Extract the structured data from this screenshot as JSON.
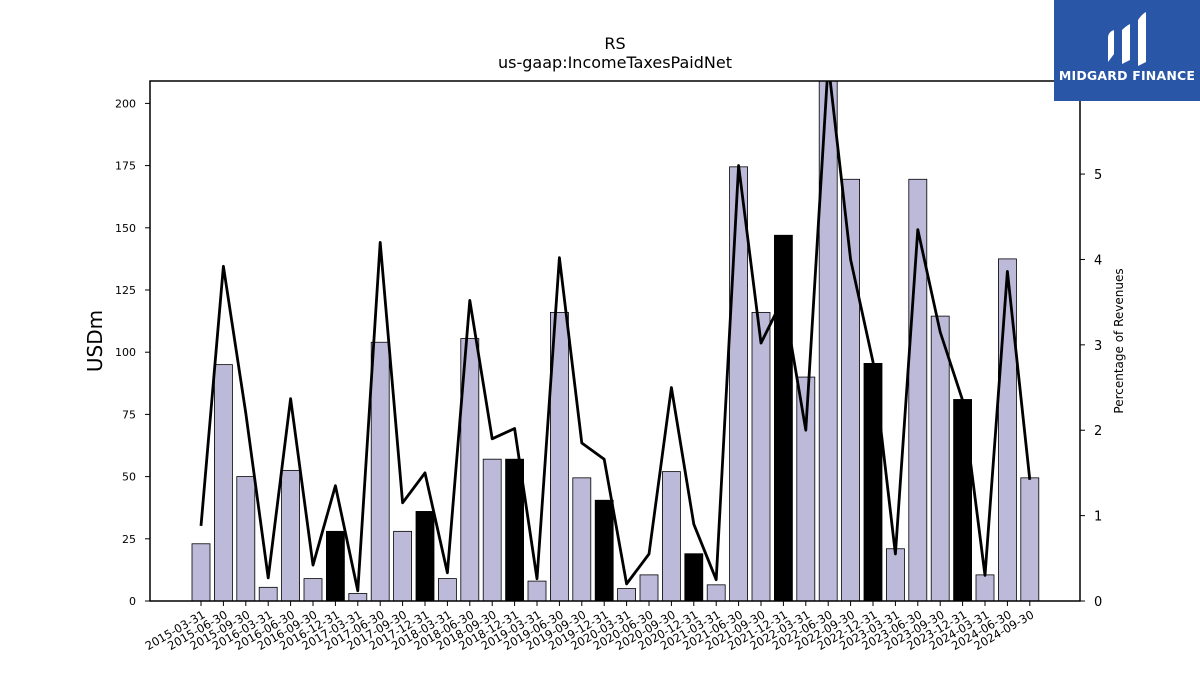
{
  "chart_data": {
    "type": "bar",
    "title": "RS",
    "subtitle": "us-gaap:IncomeTaxesPaidNet",
    "ylabel": "USDm",
    "y2label": "Percentage of Revenues",
    "ylim": [
      0,
      209
    ],
    "y2lim": [
      0,
      6.09
    ],
    "yticks": [
      0,
      25,
      50,
      75,
      100,
      125,
      150,
      175,
      200
    ],
    "y2ticks": [
      0,
      1,
      2,
      3,
      4,
      5
    ],
    "colors": {
      "bar_q": "#bdbad9",
      "bar_q4": "#000000",
      "line": "#000000"
    },
    "categories": [
      "2015-03-31",
      "2015-06-30",
      "2015-09-30",
      "2016-03-31",
      "2016-06-30",
      "2016-09-30",
      "2016-12-31",
      "2017-03-31",
      "2017-06-30",
      "2017-09-30",
      "2017-12-31",
      "2018-03-31",
      "2018-06-30",
      "2018-09-30",
      "2018-12-31",
      "2019-03-31",
      "2019-06-30",
      "2019-09-30",
      "2019-12-31",
      "2020-03-31",
      "2020-06-30",
      "2020-09-30",
      "2020-12-31",
      "2021-03-31",
      "2021-06-30",
      "2021-09-30",
      "2021-12-31",
      "2022-03-31",
      "2022-06-30",
      "2022-09-30",
      "2022-12-31",
      "2023-03-31",
      "2023-06-30",
      "2023-09-30",
      "2023-12-31",
      "2024-03-31",
      "2024-06-30",
      "2024-09-30"
    ],
    "series": [
      {
        "type": "bar",
        "values": [
          23,
          95,
          50,
          5.5,
          52.5,
          9,
          28,
          3,
          104,
          28,
          36,
          9,
          105.5,
          57,
          57,
          8,
          116,
          49.5,
          40.5,
          5,
          10.5,
          52,
          19,
          6.5,
          174.5,
          116,
          147,
          90,
          209,
          169.5,
          95.5,
          21,
          169.5,
          114.5,
          81,
          10.5,
          137.5,
          49.5
        ],
        "highlight": [
          false,
          false,
          false,
          false,
          false,
          false,
          true,
          false,
          false,
          false,
          true,
          false,
          false,
          false,
          true,
          false,
          false,
          false,
          true,
          false,
          false,
          false,
          true,
          false,
          false,
          false,
          true,
          false,
          false,
          false,
          true,
          false,
          false,
          false,
          true,
          false,
          false,
          false
        ]
      },
      {
        "type": "line",
        "axis": "right",
        "values": [
          0.88,
          3.92,
          2.2,
          0.27,
          2.37,
          0.42,
          1.35,
          0.12,
          4.2,
          1.15,
          1.5,
          0.33,
          3.52,
          1.9,
          2.02,
          0.26,
          4.02,
          1.85,
          1.66,
          0.2,
          0.55,
          2.5,
          0.9,
          0.25,
          5.1,
          3.02,
          3.55,
          2.0,
          6.3,
          4.0,
          2.8,
          0.55,
          4.35,
          3.15,
          2.35,
          0.3,
          3.86,
          1.42
        ]
      }
    ]
  },
  "brand": {
    "name": "MIDGARD FINANCE",
    "bg": "#2a56a8"
  }
}
